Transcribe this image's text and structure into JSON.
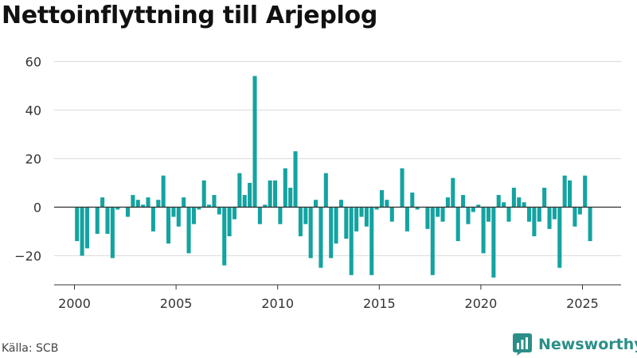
{
  "title": "Nettoinflyttning till Arjeplog",
  "source": "Källa: SCB",
  "brand": {
    "name": "Newsworthy",
    "icon": "bar-chart-speech-icon",
    "color": "#2a8f88"
  },
  "colors": {
    "bar": "#14a3a1",
    "grid": "#d9d9d9",
    "zero_line": "#333333"
  },
  "chart_data": {
    "type": "bar",
    "frequency": "quarterly",
    "x_ticks": [
      2000,
      2005,
      2010,
      2015,
      2020,
      2025
    ],
    "y_ticks": [
      -20,
      0,
      20,
      40,
      60
    ],
    "xlim": [
      1999,
      2026.9
    ],
    "ylim": [
      -32,
      65
    ],
    "grid": "horizontal",
    "series": [
      {
        "values": [
          {
            "x": "2000 Q1",
            "y": -14
          },
          {
            "x": "2000 Q2",
            "y": -20
          },
          {
            "x": "2000 Q3",
            "y": -17
          },
          {
            "x": "2000 Q4",
            "y": 0
          },
          {
            "x": "2001 Q1",
            "y": -11
          },
          {
            "x": "2001 Q2",
            "y": 4
          },
          {
            "x": "2001 Q3",
            "y": -11
          },
          {
            "x": "2001 Q4",
            "y": -21
          },
          {
            "x": "2002 Q1",
            "y": -1
          },
          {
            "x": "2002 Q2",
            "y": 0
          },
          {
            "x": "2002 Q3",
            "y": -4
          },
          {
            "x": "2002 Q4",
            "y": 5
          },
          {
            "x": "2003 Q1",
            "y": 3
          },
          {
            "x": "2003 Q2",
            "y": 1
          },
          {
            "x": "2003 Q3",
            "y": 4
          },
          {
            "x": "2003 Q4",
            "y": -10
          },
          {
            "x": "2004 Q1",
            "y": 3
          },
          {
            "x": "2004 Q2",
            "y": 13
          },
          {
            "x": "2004 Q3",
            "y": -15
          },
          {
            "x": "2004 Q4",
            "y": -4
          },
          {
            "x": "2005 Q1",
            "y": -8
          },
          {
            "x": "2005 Q2",
            "y": 4
          },
          {
            "x": "2005 Q3",
            "y": -19
          },
          {
            "x": "2005 Q4",
            "y": -7
          },
          {
            "x": "2006 Q1",
            "y": -1
          },
          {
            "x": "2006 Q2",
            "y": 11
          },
          {
            "x": "2006 Q3",
            "y": 1
          },
          {
            "x": "2006 Q4",
            "y": 5
          },
          {
            "x": "2007 Q1",
            "y": -3
          },
          {
            "x": "2007 Q2",
            "y": -24
          },
          {
            "x": "2007 Q3",
            "y": -12
          },
          {
            "x": "2007 Q4",
            "y": -5
          },
          {
            "x": "2008 Q1",
            "y": 14
          },
          {
            "x": "2008 Q2",
            "y": 5
          },
          {
            "x": "2008 Q3",
            "y": 10
          },
          {
            "x": "2008 Q4",
            "y": 54
          },
          {
            "x": "2009 Q1",
            "y": -7
          },
          {
            "x": "2009 Q2",
            "y": 1
          },
          {
            "x": "2009 Q3",
            "y": 11
          },
          {
            "x": "2009 Q4",
            "y": 11
          },
          {
            "x": "2010 Q1",
            "y": -7
          },
          {
            "x": "2010 Q2",
            "y": 16
          },
          {
            "x": "2010 Q3",
            "y": 8
          },
          {
            "x": "2010 Q4",
            "y": 23
          },
          {
            "x": "2011 Q1",
            "y": -12
          },
          {
            "x": "2011 Q2",
            "y": -7
          },
          {
            "x": "2011 Q3",
            "y": -21
          },
          {
            "x": "2011 Q4",
            "y": 3
          },
          {
            "x": "2012 Q1",
            "y": -25
          },
          {
            "x": "2012 Q2",
            "y": 14
          },
          {
            "x": "2012 Q3",
            "y": -21
          },
          {
            "x": "2012 Q4",
            "y": -15
          },
          {
            "x": "2013 Q1",
            "y": 3
          },
          {
            "x": "2013 Q2",
            "y": -13
          },
          {
            "x": "2013 Q3",
            "y": -28
          },
          {
            "x": "2013 Q4",
            "y": -10
          },
          {
            "x": "2014 Q1",
            "y": -4
          },
          {
            "x": "2014 Q2",
            "y": -8
          },
          {
            "x": "2014 Q3",
            "y": -28
          },
          {
            "x": "2014 Q4",
            "y": -1
          },
          {
            "x": "2015 Q1",
            "y": 7
          },
          {
            "x": "2015 Q2",
            "y": 3
          },
          {
            "x": "2015 Q3",
            "y": -6
          },
          {
            "x": "2015 Q4",
            "y": 0
          },
          {
            "x": "2016 Q1",
            "y": 16
          },
          {
            "x": "2016 Q2",
            "y": -10
          },
          {
            "x": "2016 Q3",
            "y": 6
          },
          {
            "x": "2016 Q4",
            "y": -1
          },
          {
            "x": "2017 Q1",
            "y": 0
          },
          {
            "x": "2017 Q2",
            "y": -9
          },
          {
            "x": "2017 Q3",
            "y": -28
          },
          {
            "x": "2017 Q4",
            "y": -4
          },
          {
            "x": "2018 Q1",
            "y": -6
          },
          {
            "x": "2018 Q2",
            "y": 4
          },
          {
            "x": "2018 Q3",
            "y": 12
          },
          {
            "x": "2018 Q4",
            "y": -14
          },
          {
            "x": "2019 Q1",
            "y": 5
          },
          {
            "x": "2019 Q2",
            "y": -7
          },
          {
            "x": "2019 Q3",
            "y": -2
          },
          {
            "x": "2019 Q4",
            "y": 1
          },
          {
            "x": "2020 Q1",
            "y": -19
          },
          {
            "x": "2020 Q2",
            "y": -6
          },
          {
            "x": "2020 Q3",
            "y": -29
          },
          {
            "x": "2020 Q4",
            "y": 5
          },
          {
            "x": "2021 Q1",
            "y": 2
          },
          {
            "x": "2021 Q2",
            "y": -6
          },
          {
            "x": "2021 Q3",
            "y": 8
          },
          {
            "x": "2021 Q4",
            "y": 4
          },
          {
            "x": "2022 Q1",
            "y": 2
          },
          {
            "x": "2022 Q2",
            "y": -6
          },
          {
            "x": "2022 Q3",
            "y": -12
          },
          {
            "x": "2022 Q4",
            "y": -6
          },
          {
            "x": "2023 Q1",
            "y": 8
          },
          {
            "x": "2023 Q2",
            "y": -9
          },
          {
            "x": "2023 Q3",
            "y": -5
          },
          {
            "x": "2023 Q4",
            "y": -25
          },
          {
            "x": "2024 Q1",
            "y": 13
          },
          {
            "x": "2024 Q2",
            "y": 11
          },
          {
            "x": "2024 Q3",
            "y": -8
          },
          {
            "x": "2024 Q4",
            "y": -3
          },
          {
            "x": "2025 Q1",
            "y": 13
          },
          {
            "x": "2025 Q2",
            "y": -14
          }
        ]
      }
    ]
  }
}
